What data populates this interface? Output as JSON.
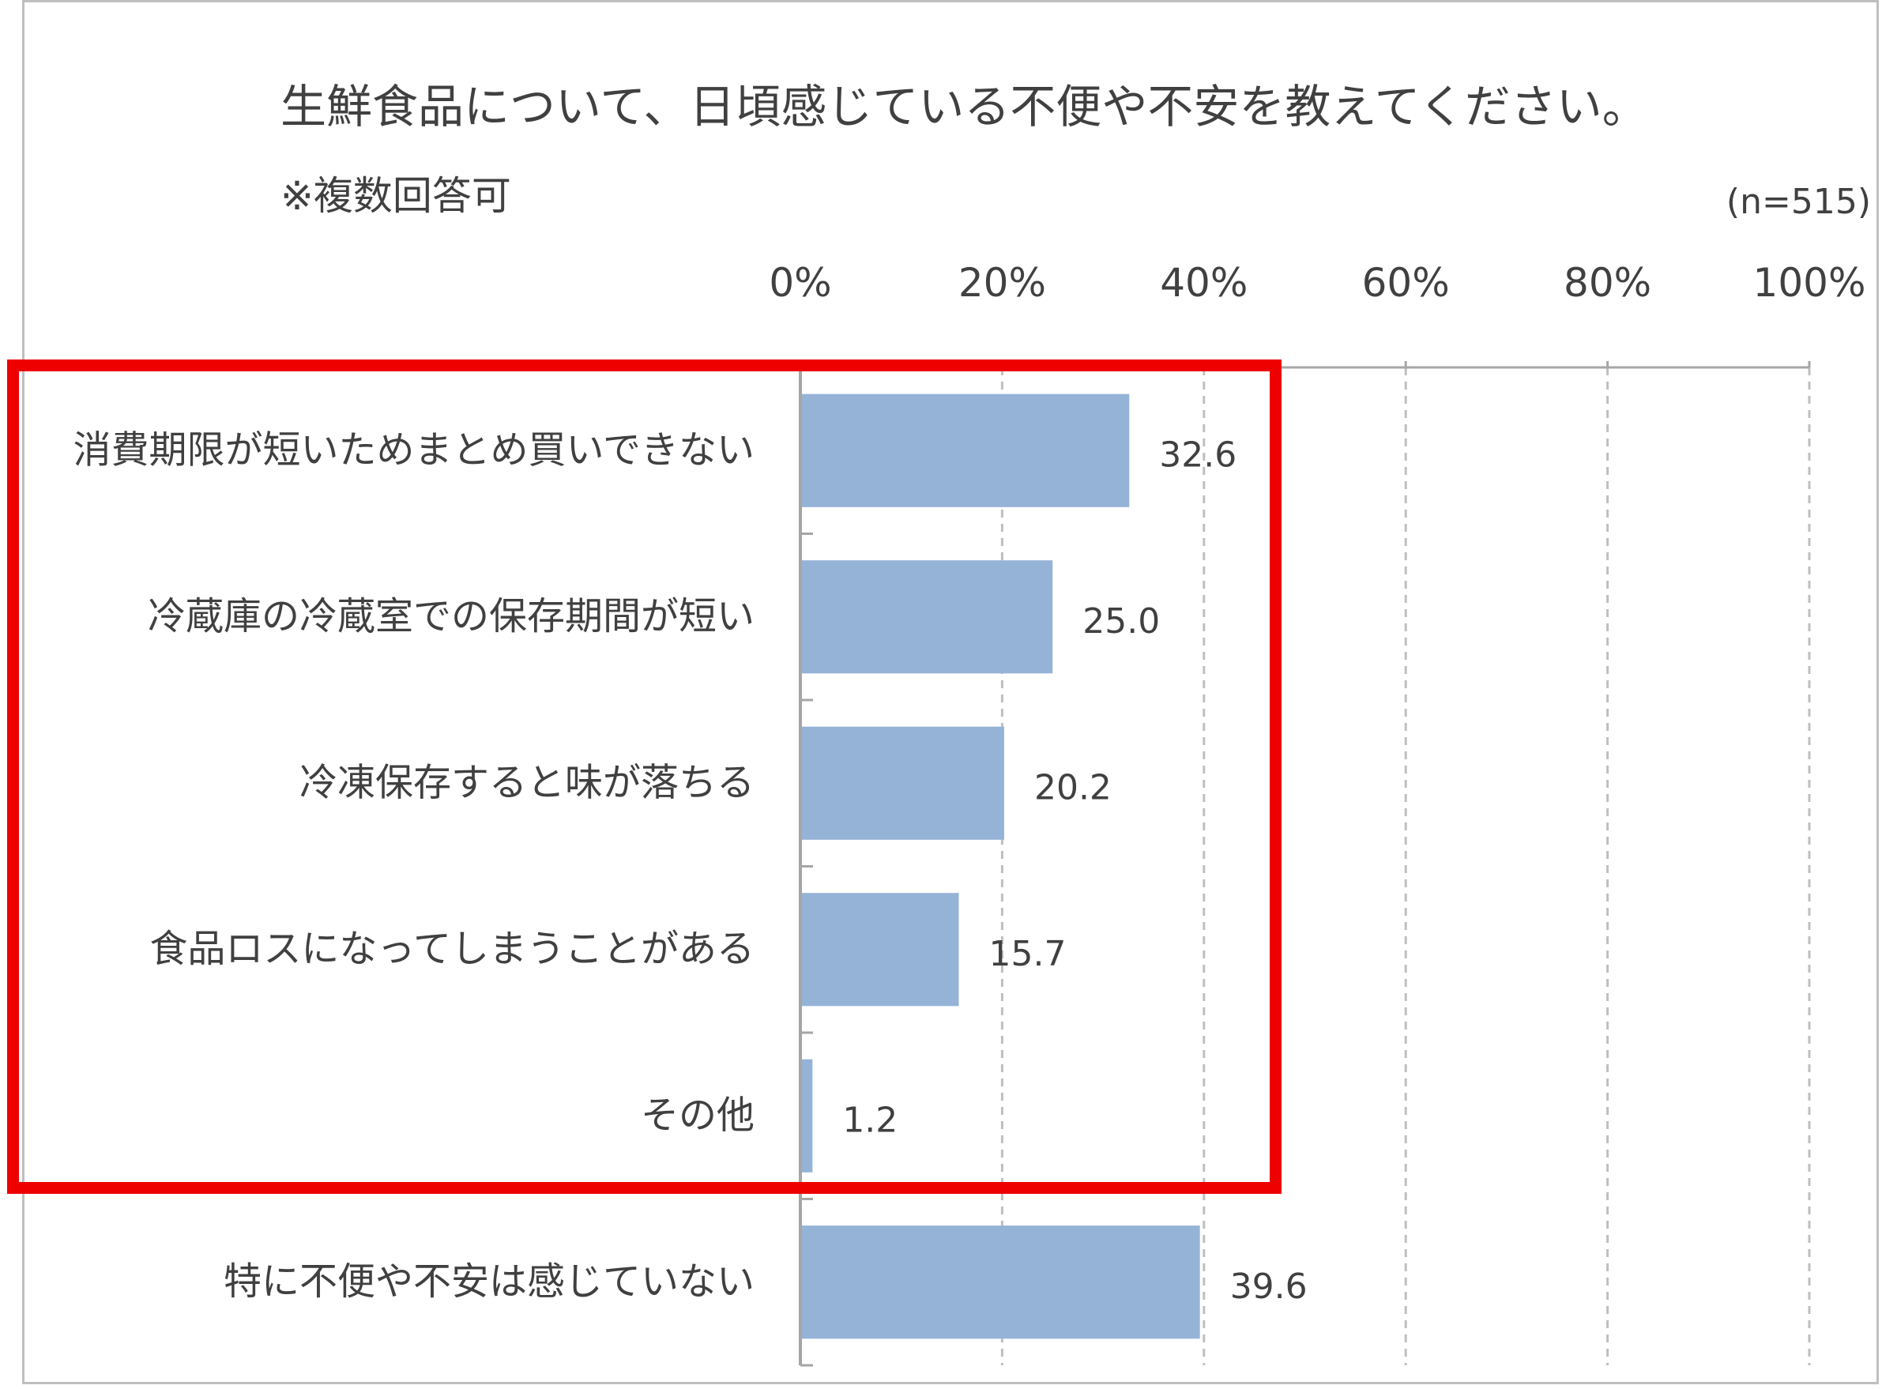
{
  "header": {
    "title": "生鮮食品について、日頃感じている不便や不安を教えてください。",
    "note": "※複数回答可",
    "sample_size": "(n=515)"
  },
  "colors": {
    "bar": "#95b3d7",
    "axis": "#a6a6a6",
    "grid": "#bfbfbf",
    "highlight": "#ee0000"
  },
  "chart_data": {
    "type": "bar",
    "orientation": "horizontal",
    "title": "生鮮食品について、日頃感じている不便や不安を教えてください。",
    "categories": [
      "消費期限が短いためまとめ買いできない",
      "冷蔵庫の冷蔵室での保存期間が短い",
      "冷凍保存すると味が落ちる",
      "食品ロスになってしまうことがある",
      "その他",
      "特に不便や不安は感じていない"
    ],
    "values": [
      32.6,
      25.0,
      20.2,
      15.7,
      1.2,
      39.6
    ],
    "value_labels": [
      "32.6",
      "25.0",
      "20.2",
      "15.7",
      "1.2",
      "39.6"
    ],
    "x_ticks": [
      "0%",
      "20%",
      "40%",
      "60%",
      "80%",
      "100%"
    ],
    "xlim": [
      0,
      100
    ],
    "grid": "vertical dashed",
    "highlighted_categories": [
      0,
      1,
      2,
      3,
      4
    ]
  }
}
